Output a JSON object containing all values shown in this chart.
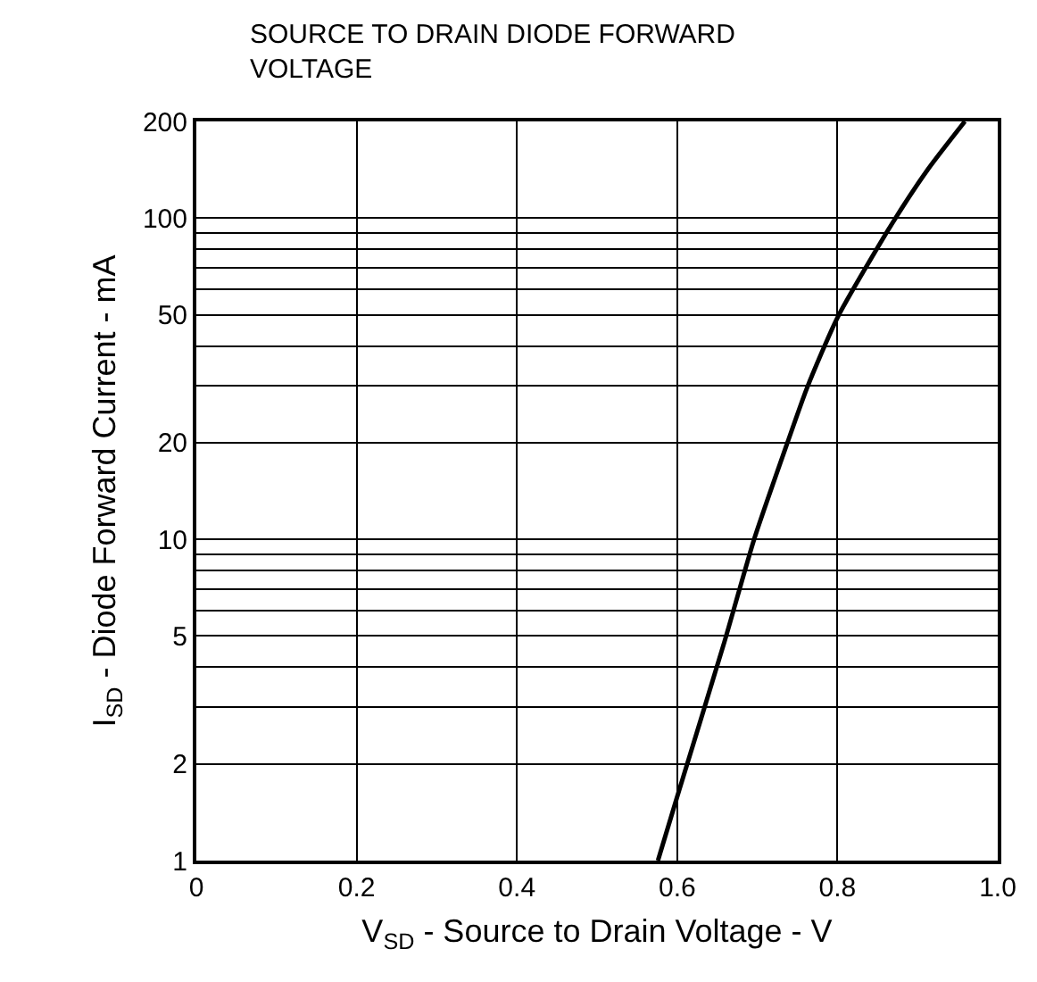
{
  "chart_data": {
    "type": "line",
    "title": "SOURCE TO DRAIN DIODE FORWARD VOLTAGE",
    "xlabel": "V$_{SD}$ - Source to Drain Voltage - V",
    "ylabel": "I$_{SD}$ - Diode Forward Current - mA",
    "log": "y",
    "grid": true,
    "marker": "none",
    "line_style": "solid",
    "xlim": [
      0,
      1.0
    ],
    "xticks": [
      0,
      0.2,
      0.4,
      0.6,
      0.8,
      {
        "value": 1.0,
        "label": "1.0"
      }
    ],
    "ylim": [
      1,
      200
    ],
    "yticks": [
      1,
      2,
      {
        "value": 3,
        "label": null
      },
      {
        "value": 4,
        "label": null
      },
      5,
      {
        "value": 6,
        "label": null
      },
      {
        "value": 7,
        "label": null
      },
      {
        "value": 8,
        "label": null
      },
      {
        "value": 9,
        "label": null
      },
      10,
      20,
      {
        "value": 30,
        "label": null
      },
      {
        "value": 40,
        "label": null
      },
      50,
      {
        "value": 60,
        "label": null
      },
      {
        "value": 70,
        "label": null
      },
      {
        "value": 80,
        "label": null
      },
      {
        "value": 90,
        "label": null
      },
      100,
      200
    ],
    "x": [
      0.576,
      0.6,
      0.659,
      0.696,
      0.737,
      0.762,
      0.8,
      0.868,
      0.913,
      0.959
    ],
    "series": [
      {
        "color": "#000000",
        "values": [
          1,
          1.58,
          4.8,
          10,
          19.8,
          29.6,
          49,
          96,
          142,
          200
        ]
      }
    ]
  }
}
